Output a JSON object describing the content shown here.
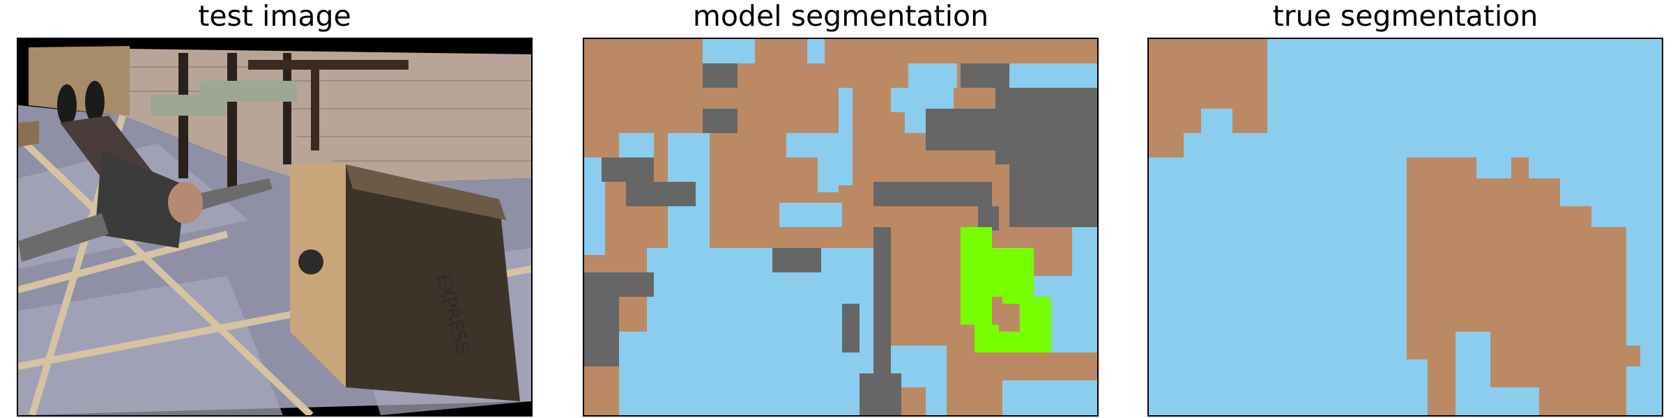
{
  "figure": {
    "panels": [
      {
        "title": "test image"
      },
      {
        "title": "model segmentation"
      },
      {
        "title": "true segmentation"
      }
    ],
    "colors": {
      "brown": "#bb8a65",
      "light_blue": "#8acdee",
      "gray": "#666666",
      "green": "#77ff00",
      "black": "#000000"
    },
    "scene_elements": [
      "person-lying-on-floor",
      "cardboard-box",
      "wooden-chairs",
      "brick-wall",
      "wooden-crate"
    ],
    "box_print": {
      "text": "EXPRESS"
    }
  }
}
